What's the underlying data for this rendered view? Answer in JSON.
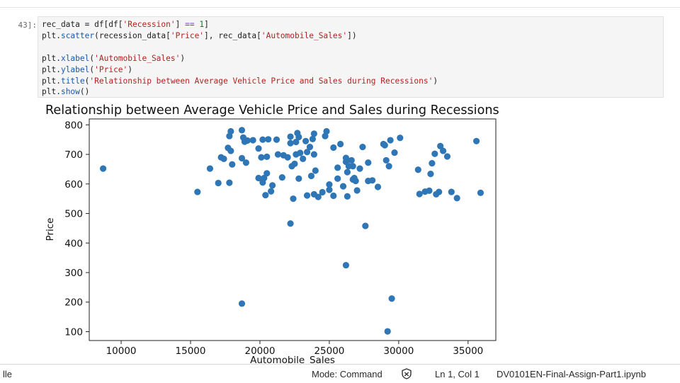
{
  "cell": {
    "prompt": "43]:",
    "lines": [
      [
        {
          "t": "rec_data = df[df["
        },
        {
          "t": "'Recession'",
          "c": "str"
        },
        {
          "t": "] "
        },
        {
          "t": "==",
          "c": "kw"
        },
        {
          "t": " "
        },
        {
          "t": "1",
          "c": "num"
        },
        {
          "t": "]"
        }
      ],
      [
        {
          "t": "plt."
        },
        {
          "t": "scatter",
          "c": "fn"
        },
        {
          "t": "(recession_data["
        },
        {
          "t": "'Price'",
          "c": "str"
        },
        {
          "t": "], rec_data["
        },
        {
          "t": "'Automobile_Sales'",
          "c": "str"
        },
        {
          "t": "])"
        }
      ],
      [],
      [
        {
          "t": "plt."
        },
        {
          "t": "xlabel",
          "c": "fn"
        },
        {
          "t": "("
        },
        {
          "t": "'Automobile_Sales'",
          "c": "str"
        },
        {
          "t": ")"
        }
      ],
      [
        {
          "t": "plt."
        },
        {
          "t": "ylabel",
          "c": "fn"
        },
        {
          "t": "("
        },
        {
          "t": "'Price'",
          "c": "str"
        },
        {
          "t": ")"
        }
      ],
      [
        {
          "t": "plt."
        },
        {
          "t": "title",
          "c": "fn"
        },
        {
          "t": "("
        },
        {
          "t": "'Relationship between Average Vehicle Price and Sales during Recessions'",
          "c": "str"
        },
        {
          "t": ")"
        }
      ],
      [
        {
          "t": "plt."
        },
        {
          "t": "show",
          "c": "fn"
        },
        {
          "t": "()"
        }
      ]
    ]
  },
  "chart_data": {
    "type": "scatter",
    "title": "Relationship between Average Vehicle Price and Sales during Recessions",
    "xlabel": "Automobile_Sales",
    "ylabel": "Price",
    "xlim": [
      7700,
      37000
    ],
    "ylim": [
      70,
      820
    ],
    "xticks": [
      10000,
      15000,
      20000,
      25000,
      30000,
      35000
    ],
    "yticks": [
      100,
      200,
      300,
      400,
      500,
      600,
      700,
      800
    ],
    "grid": false,
    "color": "#2e76b5",
    "points": [
      [
        8700,
        652
      ],
      [
        15500,
        573
      ],
      [
        16400,
        652
      ],
      [
        17000,
        603
      ],
      [
        17200,
        690
      ],
      [
        17400,
        685
      ],
      [
        17700,
        722
      ],
      [
        17900,
        712
      ],
      [
        17800,
        604
      ],
      [
        18000,
        666
      ],
      [
        17800,
        762
      ],
      [
        17900,
        778
      ],
      [
        18700,
        782
      ],
      [
        18800,
        757
      ],
      [
        18900,
        743
      ],
      [
        19100,
        747
      ],
      [
        18700,
        687
      ],
      [
        19000,
        672
      ],
      [
        18700,
        195
      ],
      [
        19500,
        748
      ],
      [
        19900,
        720
      ],
      [
        20200,
        750
      ],
      [
        20600,
        751
      ],
      [
        20100,
        690
      ],
      [
        20500,
        692
      ],
      [
        19900,
        620
      ],
      [
        20200,
        605
      ],
      [
        20300,
        620
      ],
      [
        20500,
        636
      ],
      [
        20400,
        562
      ],
      [
        20800,
        575
      ],
      [
        20900,
        595
      ],
      [
        21200,
        750
      ],
      [
        21700,
        697
      ],
      [
        22000,
        690
      ],
      [
        21600,
        622
      ],
      [
        22200,
        760
      ],
      [
        22200,
        738
      ],
      [
        22300,
        660
      ],
      [
        22500,
        668
      ],
      [
        22600,
        700
      ],
      [
        22400,
        550
      ],
      [
        22200,
        466
      ],
      [
        22700,
        772
      ],
      [
        22800,
        759
      ],
      [
        22600,
        742
      ],
      [
        22900,
        705
      ],
      [
        23300,
        745
      ],
      [
        23100,
        685
      ],
      [
        22800,
        618
      ],
      [
        23400,
        708
      ],
      [
        23600,
        725
      ],
      [
        23900,
        770
      ],
      [
        23800,
        752
      ],
      [
        23900,
        700
      ],
      [
        23700,
        627
      ],
      [
        24000,
        645
      ],
      [
        23400,
        561
      ],
      [
        23900,
        565
      ],
      [
        24200,
        556
      ],
      [
        24800,
        778
      ],
      [
        24700,
        762
      ],
      [
        25000,
        580
      ],
      [
        25000,
        598
      ],
      [
        25300,
        723
      ],
      [
        25600,
        655
      ],
      [
        25800,
        735
      ],
      [
        25600,
        618
      ],
      [
        25300,
        560
      ],
      [
        26000,
        592
      ],
      [
        26200,
        688
      ],
      [
        26200,
        675
      ],
      [
        26400,
        660
      ],
      [
        26300,
        640
      ],
      [
        26300,
        558
      ],
      [
        26600,
        680
      ],
      [
        26700,
        660
      ],
      [
        26900,
        610
      ],
      [
        26700,
        615
      ],
      [
        26800,
        620
      ],
      [
        27200,
        652
      ],
      [
        27400,
        725
      ],
      [
        27800,
        610
      ],
      [
        28100,
        612
      ],
      [
        27800,
        672
      ],
      [
        26200,
        325
      ],
      [
        27600,
        458
      ],
      [
        28900,
        735
      ],
      [
        29000,
        731
      ],
      [
        29100,
        680
      ],
      [
        29300,
        660
      ],
      [
        29400,
        748
      ],
      [
        29700,
        706
      ],
      [
        30100,
        756
      ],
      [
        29200,
        101
      ],
      [
        29500,
        212
      ],
      [
        31400,
        648
      ],
      [
        31500,
        566
      ],
      [
        31900,
        574
      ],
      [
        32200,
        577
      ],
      [
        32300,
        634
      ],
      [
        32400,
        670
      ],
      [
        32600,
        702
      ],
      [
        32900,
        573
      ],
      [
        32700,
        565
      ],
      [
        33000,
        728
      ],
      [
        33200,
        712
      ],
      [
        33500,
        693
      ],
      [
        33800,
        573
      ],
      [
        34200,
        552
      ],
      [
        35600,
        745
      ],
      [
        35900,
        570
      ],
      [
        27000,
        578
      ],
      [
        24500,
        572
      ],
      [
        21300,
        700
      ],
      [
        28500,
        590
      ]
    ]
  },
  "status": {
    "left": "lle",
    "mode": "Mode: Command",
    "icon": "shield-icon",
    "position": "Ln 1, Col 1",
    "filename": "DV0101EN-Final-Assign-Part1.ipynb"
  }
}
